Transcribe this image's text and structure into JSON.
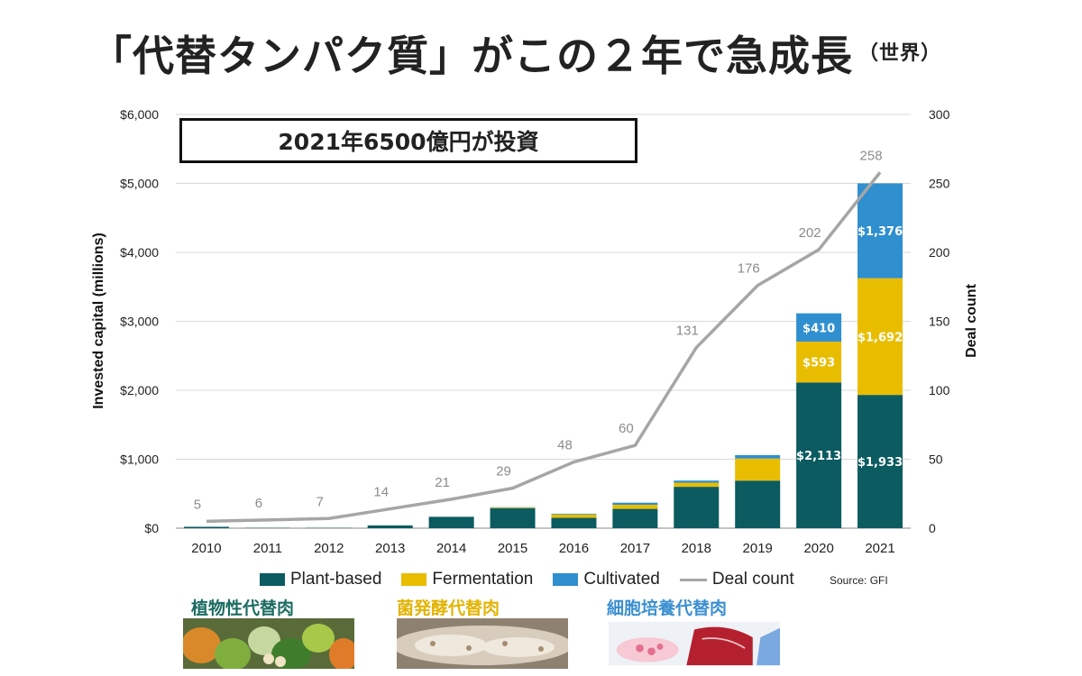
{
  "title": "「代替タンパク質」がこの２年で急成長",
  "title_suffix": "（世界）",
  "callout": "2021年6500億円が投資",
  "source": "Source: GFI",
  "colors": {
    "plant": "#0b5b61",
    "fermentation": "#e8bd00",
    "cultivated": "#2f8fcf",
    "deal": "#a6a6a6"
  },
  "categories": [
    {
      "label": "植物性代替肉",
      "color": "#1a6b60"
    },
    {
      "label": "菌発酵代替肉",
      "color": "#e3b300"
    },
    {
      "label": "細胞培養代替肉",
      "color": "#3a8fd0"
    }
  ],
  "chart_data": {
    "type": "bar",
    "stacked": true,
    "x": [
      "2010",
      "2011",
      "2012",
      "2013",
      "2014",
      "2015",
      "2016",
      "2017",
      "2018",
      "2019",
      "2020",
      "2021"
    ],
    "series": [
      {
        "name": "Plant-based",
        "values": [
          20,
          5,
          5,
          40,
          165,
          290,
          150,
          280,
          600,
          690,
          2113,
          1933
        ]
      },
      {
        "name": "Fermentation",
        "values": [
          0,
          0,
          0,
          0,
          0,
          10,
          50,
          60,
          60,
          320,
          593,
          1692
        ]
      },
      {
        "name": "Cultivated",
        "values": [
          0,
          0,
          0,
          0,
          0,
          5,
          10,
          30,
          30,
          50,
          410,
          1376
        ]
      }
    ],
    "line": {
      "name": "Deal count",
      "values": [
        5,
        6,
        7,
        14,
        21,
        29,
        48,
        60,
        131,
        176,
        202,
        258
      ]
    },
    "bar_labels": {
      "2020": {
        "Plant-based": "$2,113",
        "Fermentation": "$593",
        "Cultivated": "$410"
      },
      "2021": {
        "Plant-based": "$1,933",
        "Fermentation": "$1,692",
        "Cultivated": "$1,376"
      }
    },
    "ylabel": "Invested capital (millions)",
    "y2label": "Deal count",
    "ylim": [
      0,
      6000
    ],
    "y2lim": [
      0,
      300
    ],
    "yticks": [
      "$0",
      "$1,000",
      "$2,000",
      "$3,000",
      "$4,000",
      "$5,000",
      "$6,000"
    ],
    "y2ticks": [
      "0",
      "50",
      "100",
      "150",
      "200",
      "250",
      "300"
    ],
    "grid": true,
    "legend": "bottom"
  }
}
